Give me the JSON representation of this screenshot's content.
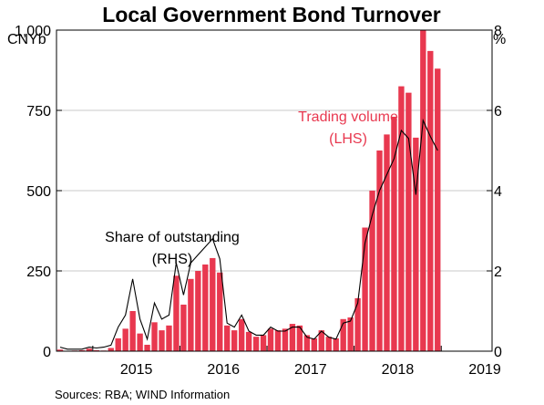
{
  "chart_data": {
    "type": "bar",
    "title": "Local Government Bond Turnover",
    "left_unit": "CNYb",
    "right_unit": "%",
    "left_axis": {
      "min": 0,
      "max": 1000,
      "ticks": [
        0,
        250,
        500,
        750,
        1000
      ],
      "tick_labels": [
        "0",
        "250",
        "500",
        "750",
        "1,000"
      ]
    },
    "right_axis": {
      "min": 0,
      "max": 8,
      "ticks": [
        0,
        2,
        4,
        6,
        8
      ],
      "tick_labels": [
        "0",
        "2",
        "4",
        "6",
        "8"
      ]
    },
    "x_axis": {
      "start": "2014-08",
      "end": "2019-08",
      "year_labels": [
        "2015",
        "2016",
        "2017",
        "2018",
        "2019"
      ]
    },
    "grid": true,
    "months": [
      "2014-08",
      "2014-09",
      "2014-10",
      "2014-11",
      "2014-12",
      "2015-01",
      "2015-02",
      "2015-03",
      "2015-04",
      "2015-05",
      "2015-06",
      "2015-07",
      "2015-08",
      "2015-09",
      "2015-10",
      "2015-11",
      "2015-12",
      "2016-01",
      "2016-02",
      "2016-03",
      "2016-04",
      "2016-05",
      "2016-06",
      "2016-07",
      "2016-08",
      "2016-09",
      "2016-10",
      "2016-11",
      "2016-12",
      "2017-01",
      "2017-02",
      "2017-03",
      "2017-04",
      "2017-05",
      "2017-06",
      "2017-07",
      "2017-08",
      "2017-09",
      "2017-10",
      "2017-11",
      "2017-12",
      "2018-01",
      "2018-02",
      "2018-03",
      "2018-04",
      "2018-05",
      "2018-06",
      "2018-07",
      "2018-08",
      "2018-09",
      "2018-10",
      "2018-11",
      "2018-12"
    ],
    "series": [
      {
        "name": "Trading volume",
        "axis": "left",
        "kind": "bar",
        "color": "#e8384f",
        "values": [
          5,
          1,
          2,
          3,
          8,
          3,
          2,
          10,
          40,
          70,
          125,
          55,
          20,
          90,
          65,
          80,
          235,
          145,
          225,
          250,
          270,
          290,
          245,
          80,
          65,
          100,
          60,
          45,
          50,
          70,
          65,
          70,
          85,
          80,
          50,
          40,
          65,
          45,
          40,
          100,
          105,
          165,
          385,
          500,
          625,
          675,
          730,
          825,
          805,
          665,
          1000,
          935,
          880
        ]
      },
      {
        "name": "Share of outstanding",
        "axis": "right",
        "kind": "line",
        "color": "#000000",
        "values": [
          0.1,
          0.05,
          0.05,
          0.05,
          0.1,
          0.08,
          0.1,
          0.15,
          0.6,
          0.9,
          1.8,
          0.8,
          0.3,
          1.2,
          0.8,
          0.9,
          2.2,
          1.4,
          2.2,
          2.4,
          2.6,
          2.8,
          2.3,
          0.7,
          0.6,
          0.9,
          0.5,
          0.4,
          0.4,
          0.6,
          0.5,
          0.5,
          0.6,
          0.6,
          0.35,
          0.3,
          0.5,
          0.35,
          0.3,
          0.7,
          0.75,
          1.2,
          2.7,
          3.4,
          4.0,
          4.4,
          4.8,
          5.5,
          5.3,
          3.9,
          5.75,
          5.35,
          5.0
        ]
      }
    ],
    "annotations": {
      "trading": [
        "Trading volume",
        "(LHS)"
      ],
      "share": [
        "Share of outstanding",
        "(RHS)"
      ]
    },
    "source": "Sources:   RBA; WIND Information"
  }
}
